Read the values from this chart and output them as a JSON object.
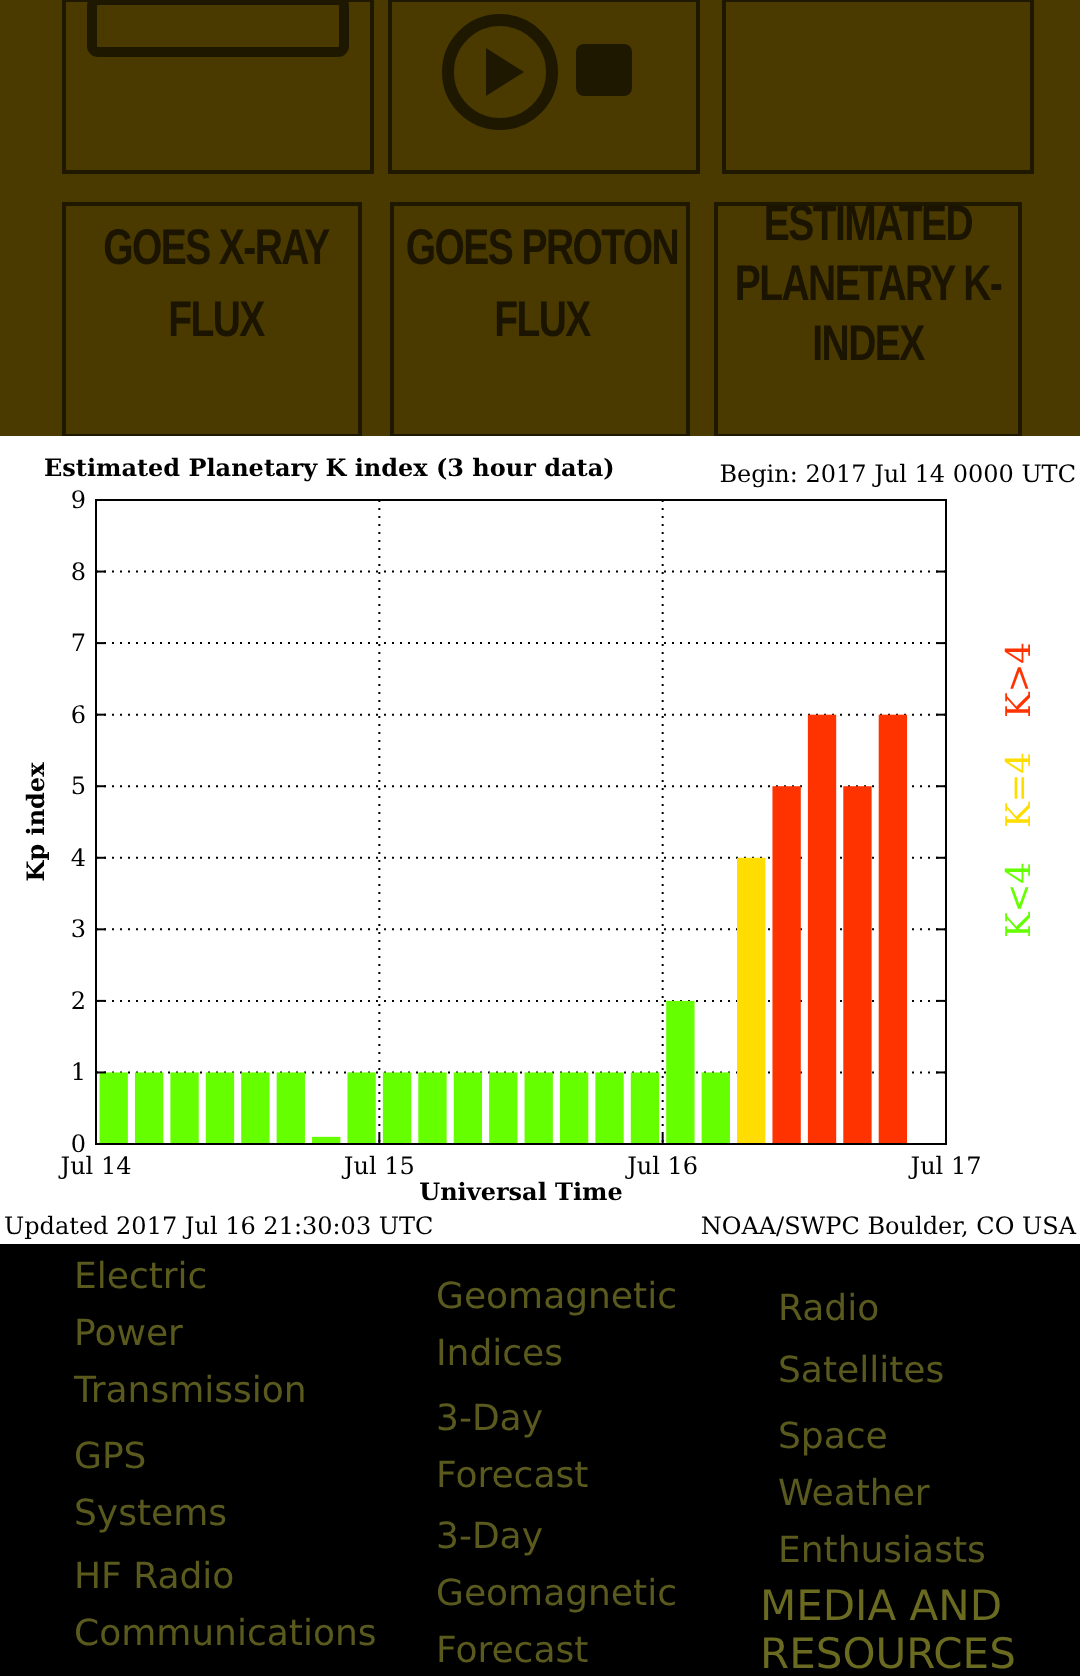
{
  "chart_data": {
    "type": "bar",
    "title": "Estimated Planetary K index (3 hour data)",
    "xlabel": "Universal Time",
    "ylabel": "Kp index",
    "series": [
      {
        "name": "K<4",
        "color": "#66ff00",
        "x": [
          "2017-07-14T01:30",
          "2017-07-14T04:30",
          "2017-07-14T07:30",
          "2017-07-14T10:30",
          "2017-07-14T13:30",
          "2017-07-14T16:30",
          "2017-07-14T19:30",
          "2017-07-14T22:30",
          "2017-07-15T01:30",
          "2017-07-15T04:30",
          "2017-07-15T07:30",
          "2017-07-15T10:30",
          "2017-07-15T13:30",
          "2017-07-15T16:30",
          "2017-07-15T19:30",
          "2017-07-15T22:30",
          "2017-07-16T01:30",
          "2017-07-16T04:30"
        ],
        "values": [
          1,
          1,
          1,
          1,
          1,
          1,
          0.1,
          1,
          1,
          1,
          1,
          1,
          1,
          1,
          1,
          1,
          2,
          1
        ]
      },
      {
        "name": "K=4",
        "color": "#ffdd00",
        "x": [
          "2017-07-16T07:30"
        ],
        "values": [
          4
        ]
      },
      {
        "name": "K>4",
        "color": "#ff3300",
        "x": [
          "2017-07-16T10:30",
          "2017-07-16T13:30",
          "2017-07-16T16:30",
          "2017-07-16T19:30"
        ],
        "values": [
          5,
          6,
          5,
          6
        ]
      }
    ],
    "xlim": [
      "2017-07-14",
      "2017-07-17"
    ],
    "xticks": [
      {
        "value": "2017-07-14",
        "label": "Jul 14"
      },
      {
        "value": "2017-07-15",
        "label": "Jul 15"
      },
      {
        "value": "2017-07-16",
        "label": "Jul 16"
      },
      {
        "value": "2017-07-17",
        "label": "Jul 17"
      }
    ],
    "ylim": [
      0,
      9
    ],
    "yticks": [
      0,
      1,
      2,
      3,
      4,
      5,
      6,
      7,
      8,
      9
    ],
    "grid": true,
    "line_style": "dotted",
    "legend": "right",
    "annotations": [
      "Begin: 2017 Jul 14 0000 UTC",
      "Updated 2017 Jul 16 21:30:03 UTC",
      "NOAA/SWPC Boulder, CO USA",
      "GOES X-RAY FLUX",
      "GOES PROTON FLUX",
      "ESTIMATED PLANETARY K-INDEX",
      "Electric Power Transmission",
      "GPS Systems",
      "HF Radio Communications",
      "Geomagnetic Indices",
      "3-Day Forecast",
      "3-Day Geomagnetic Forecast",
      "Radio",
      "Satellites",
      "Space Weather Enthusiasts",
      "MEDIA AND RESOURCES"
    ]
  }
}
